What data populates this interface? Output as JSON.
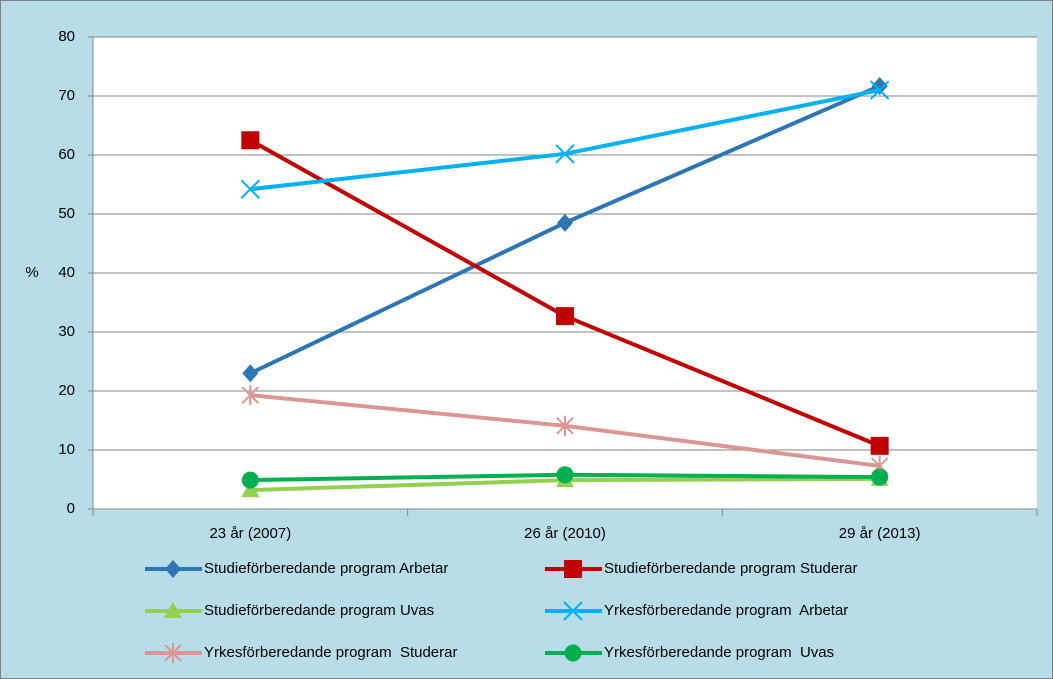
{
  "chart_data": {
    "type": "line",
    "y_label": "%",
    "categories": [
      "23 år (2007)",
      "26 år (2010)",
      "29 år (2013)"
    ],
    "ylim": [
      0,
      80
    ],
    "yticks": [
      0,
      10,
      20,
      30,
      40,
      50,
      60,
      70,
      80
    ],
    "grid": true,
    "series": [
      {
        "name": "Studieförberedande program Arbetar",
        "color": "#2e75b6",
        "marker": "diamond",
        "values": [
          23,
          48.5,
          71.7
        ]
      },
      {
        "name": "Studieförberedande program Studerar",
        "color": "#c00000",
        "marker": "square",
        "values": [
          62.5,
          32.7,
          10.7
        ]
      },
      {
        "name": "Studieförberedande program Uvas",
        "color": "#92d050",
        "marker": "triangle",
        "values": [
          3.2,
          4.9,
          5.1
        ]
      },
      {
        "name": "Yrkesförberedande program  Arbetar",
        "color": "#00b0f0",
        "marker": "x",
        "values": [
          54.2,
          60.2,
          71
        ]
      },
      {
        "name": "Yrkesförberedande program  Studerar",
        "color": "#d99694",
        "marker": "star",
        "values": [
          19.3,
          14.1,
          7.3
        ]
      },
      {
        "name": "Yrkesförberedande program  Uvas",
        "color": "#00b050",
        "marker": "circle",
        "values": [
          4.9,
          5.8,
          5.4
        ]
      }
    ]
  }
}
